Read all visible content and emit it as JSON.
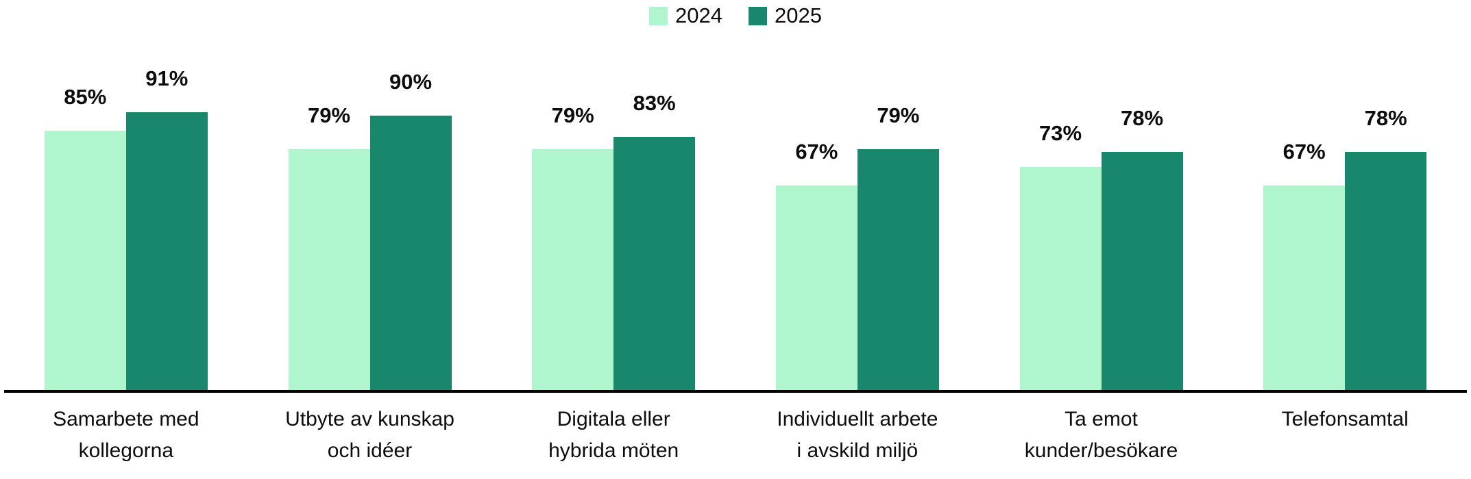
{
  "page": {
    "background": "#ffffff",
    "text_color": "#0d0d0d"
  },
  "legend": {
    "position": "top-center",
    "items": [
      {
        "label": "2024",
        "color": "#AFF6CF"
      },
      {
        "label": "2025",
        "color": "#18876C"
      }
    ]
  },
  "chart_data": {
    "type": "bar",
    "title": "",
    "xlabel": "",
    "ylabel": "",
    "unit": "%",
    "ylim": [
      0,
      100
    ],
    "grid": false,
    "legend_position": "top-center",
    "value_labels": "outside-end",
    "axis_line_color": "#000000",
    "categories": [
      "Samarbete med\nkollegorna",
      "Utbyte av kunskap\noch idéer",
      "Digitala eller\nhybrida möten",
      "Individuellt arbete\ni avskild miljö",
      "Ta emot\nkunder/besökare",
      "Telefonsamtal"
    ],
    "series": [
      {
        "name": "2024",
        "color": "#AFF6CF",
        "values": [
          85,
          79,
          79,
          67,
          73,
          67
        ],
        "labels": [
          "85%",
          "79%",
          "79%",
          "67%",
          "73%",
          "67%"
        ]
      },
      {
        "name": "2025",
        "color": "#18876C",
        "values": [
          91,
          90,
          83,
          79,
          78,
          78
        ],
        "labels": [
          "91%",
          "90%",
          "83%",
          "79%",
          "78%",
          "78%"
        ]
      }
    ]
  }
}
